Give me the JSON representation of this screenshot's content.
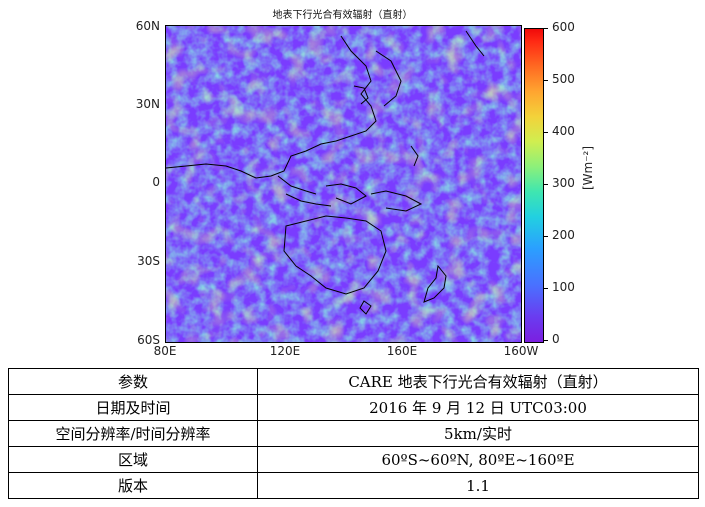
{
  "map": {
    "title": "地表下行光合有效辐射（直射）",
    "lat_labels": [
      "60N",
      "30N",
      "0",
      "30S",
      "60S"
    ],
    "lon_labels": [
      "80E",
      "120E",
      "160E",
      "160W"
    ],
    "colorbar": {
      "ticks": [
        "600",
        "500",
        "400",
        "300",
        "200",
        "100",
        "0"
      ],
      "unit": "[Wm⁻²]",
      "colormap": "jet",
      "range": [
        0,
        600
      ]
    },
    "colors": {
      "low": "#7a3cff",
      "mid": "#3fe6b0",
      "high": "#f3d23a",
      "coast": "#000000"
    }
  },
  "table": {
    "rows": [
      {
        "key": "参数",
        "value": "CARE  地表下行光合有效辐射（直射）"
      },
      {
        "key": "日期及时间",
        "value": "2016 年 9 月 12 日 UTC03:00"
      },
      {
        "key": "空间分辨率/时间分辨率",
        "value": "5km/实时"
      },
      {
        "key": "区域",
        "value": "60ºS~60ºN, 80ºE~160ºE"
      },
      {
        "key": "版本",
        "value": "1.1"
      }
    ]
  }
}
